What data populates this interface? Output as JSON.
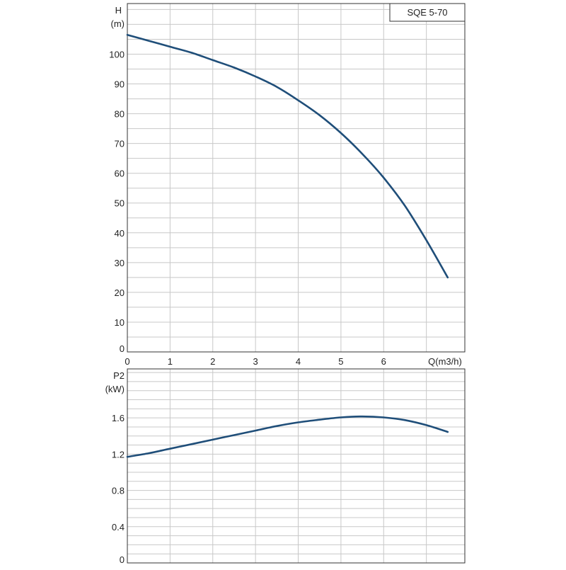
{
  "colors": {
    "curve": "#1f4e79",
    "grid": "#c8c8c8",
    "frame": "#333333"
  },
  "chart_data": [
    {
      "type": "line",
      "title": "SQE 5-70",
      "ylabel": "H",
      "yunit": "(m)",
      "xlabel": "Q(m3/h)",
      "xlim": [
        0,
        7.9
      ],
      "ylim": [
        0,
        117
      ],
      "xticks": [
        "0",
        "1",
        "2",
        "3",
        "4",
        "5",
        "6"
      ],
      "yticks": [
        "0",
        "10",
        "20",
        "30",
        "40",
        "50",
        "60",
        "70",
        "80",
        "90",
        "100"
      ],
      "grid": true,
      "series": [
        {
          "x": [
            0,
            0.5,
            1,
            1.5,
            2,
            2.5,
            3,
            3.5,
            4,
            4.5,
            5,
            5.5,
            6,
            6.5,
            7,
            7.5
          ],
          "values": [
            106.5,
            104.5,
            102.5,
            100.5,
            98,
            95.5,
            92.5,
            89,
            84.5,
            79.5,
            73.5,
            66.5,
            58.5,
            49,
            37.5,
            25
          ]
        }
      ]
    },
    {
      "type": "line",
      "ylabel": "P2",
      "yunit": "(kW)",
      "xlim": [
        0,
        7.9
      ],
      "ylim": [
        0,
        2.14
      ],
      "yticks": [
        "0",
        "0.4",
        "0.8",
        "1.2",
        "1.6"
      ],
      "grid": true,
      "series": [
        {
          "x": [
            0,
            0.5,
            1,
            1.5,
            2,
            2.5,
            3,
            3.5,
            4,
            4.5,
            5,
            5.5,
            6,
            6.5,
            7,
            7.5
          ],
          "values": [
            1.17,
            1.21,
            1.26,
            1.31,
            1.36,
            1.41,
            1.46,
            1.51,
            1.55,
            1.58,
            1.605,
            1.615,
            1.605,
            1.575,
            1.52,
            1.445
          ]
        }
      ]
    }
  ]
}
